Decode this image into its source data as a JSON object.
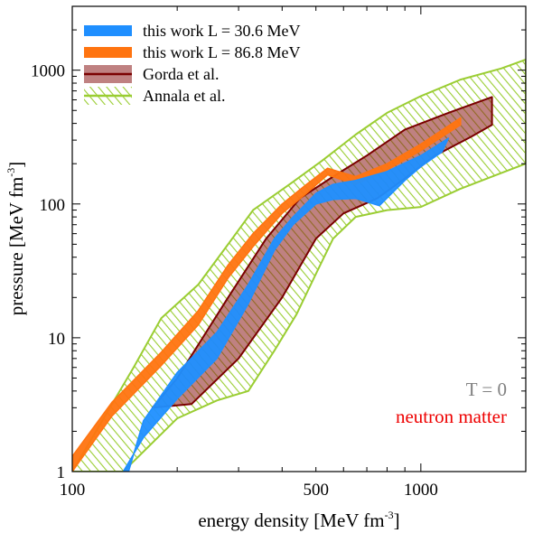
{
  "chart_data": {
    "type": "area",
    "title": "",
    "xlabel": "energy density [MeV fm",
    "xlabel_sup": "-3",
    "xlabel_end": "]",
    "ylabel": "pressure [MeV fm",
    "ylabel_sup": "-3",
    "ylabel_end": "]",
    "x_scale": "log",
    "y_scale": "log",
    "xlim": [
      100,
      2000
    ],
    "ylim": [
      1,
      3000
    ],
    "x_ticks": [
      {
        "value": 100,
        "label": "100"
      },
      {
        "value": 500,
        "label": "500"
      },
      {
        "value": 1000,
        "label": "1000"
      }
    ],
    "y_ticks": [
      {
        "value": 1,
        "label": "1"
      },
      {
        "value": 10,
        "label": "10"
      },
      {
        "value": 100,
        "label": "100"
      },
      {
        "value": 1000,
        "label": "1000"
      }
    ],
    "grid": false,
    "legend_placement": "top-left",
    "series": [
      {
        "name": "this work L = 30.6 MeV",
        "kind": "band",
        "color": "#1f8fff",
        "upper": [
          [
            145,
            1
          ],
          [
            160,
            2.4
          ],
          [
            200,
            5.5
          ],
          [
            260,
            11
          ],
          [
            320,
            25
          ],
          [
            380,
            55
          ],
          [
            430,
            80
          ],
          [
            500,
            120
          ],
          [
            560,
            140
          ],
          [
            650,
            150
          ],
          [
            800,
            175
          ],
          [
            1000,
            230
          ],
          [
            1200,
            310
          ]
        ],
        "lower": [
          [
            140,
            1
          ],
          [
            160,
            1.8
          ],
          [
            200,
            3.5
          ],
          [
            260,
            7
          ],
          [
            320,
            18
          ],
          [
            380,
            45
          ],
          [
            430,
            70
          ],
          [
            500,
            100
          ],
          [
            560,
            108
          ],
          [
            650,
            110
          ],
          [
            760,
            97
          ],
          [
            900,
            150
          ],
          [
            1000,
            190
          ],
          [
            1150,
            245
          ]
        ]
      },
      {
        "name": "this work L = 86.8 MeV",
        "kind": "band",
        "color": "#ff7410",
        "upper": [
          [
            100,
            1.3
          ],
          [
            130,
            3.3
          ],
          [
            180,
            7.8
          ],
          [
            230,
            16
          ],
          [
            280,
            35
          ],
          [
            330,
            60
          ],
          [
            400,
            100
          ],
          [
            470,
            140
          ],
          [
            540,
            185
          ],
          [
            650,
            160
          ],
          [
            800,
            200
          ],
          [
            1000,
            280
          ],
          [
            1300,
            440
          ]
        ],
        "lower": [
          [
            100,
            1
          ],
          [
            130,
            2.6
          ],
          [
            180,
            6.2
          ],
          [
            230,
            12.5
          ],
          [
            280,
            28
          ],
          [
            330,
            48
          ],
          [
            400,
            85
          ],
          [
            470,
            120
          ],
          [
            540,
            165
          ],
          [
            650,
            140
          ],
          [
            800,
            180
          ],
          [
            1000,
            250
          ],
          [
            1300,
            390
          ]
        ]
      },
      {
        "name": "Gorda et al.",
        "kind": "band",
        "color": "#8b1a1a",
        "upper": [
          [
            170,
            3
          ],
          [
            200,
            5
          ],
          [
            280,
            20
          ],
          [
            360,
            55
          ],
          [
            450,
            110
          ],
          [
            560,
            160
          ],
          [
            700,
            230
          ],
          [
            900,
            360
          ],
          [
            1200,
            480
          ],
          [
            1600,
            630
          ]
        ],
        "lower": [
          [
            170,
            3
          ],
          [
            220,
            3.2
          ],
          [
            300,
            7
          ],
          [
            400,
            20
          ],
          [
            500,
            55
          ],
          [
            600,
            85
          ],
          [
            750,
            110
          ],
          [
            900,
            155
          ],
          [
            1100,
            230
          ],
          [
            1400,
            320
          ],
          [
            1600,
            390
          ]
        ]
      },
      {
        "name": "Annala et al.",
        "kind": "band",
        "color": "#9acd32",
        "upper": [
          [
            100,
            1
          ],
          [
            150,
            6
          ],
          [
            180,
            14
          ],
          [
            230,
            25
          ],
          [
            280,
            50
          ],
          [
            330,
            90
          ],
          [
            420,
            140
          ],
          [
            520,
            210
          ],
          [
            650,
            330
          ],
          [
            800,
            480
          ],
          [
            1000,
            640
          ],
          [
            1300,
            850
          ],
          [
            1700,
            1030
          ],
          [
            2000,
            1200
          ]
        ],
        "lower": [
          [
            100,
            1
          ],
          [
            140,
            1
          ],
          [
            200,
            2.5
          ],
          [
            260,
            3.4
          ],
          [
            320,
            4
          ],
          [
            380,
            8
          ],
          [
            440,
            15
          ],
          [
            500,
            30
          ],
          [
            560,
            55
          ],
          [
            650,
            80
          ],
          [
            800,
            90
          ],
          [
            1000,
            95
          ],
          [
            1300,
            130
          ],
          [
            1700,
            170
          ],
          [
            2000,
            200
          ]
        ]
      }
    ],
    "annotations": [
      {
        "text": "T = 0",
        "color": "#808080"
      },
      {
        "text": "neutron matter",
        "color": "#ee0000"
      }
    ]
  }
}
